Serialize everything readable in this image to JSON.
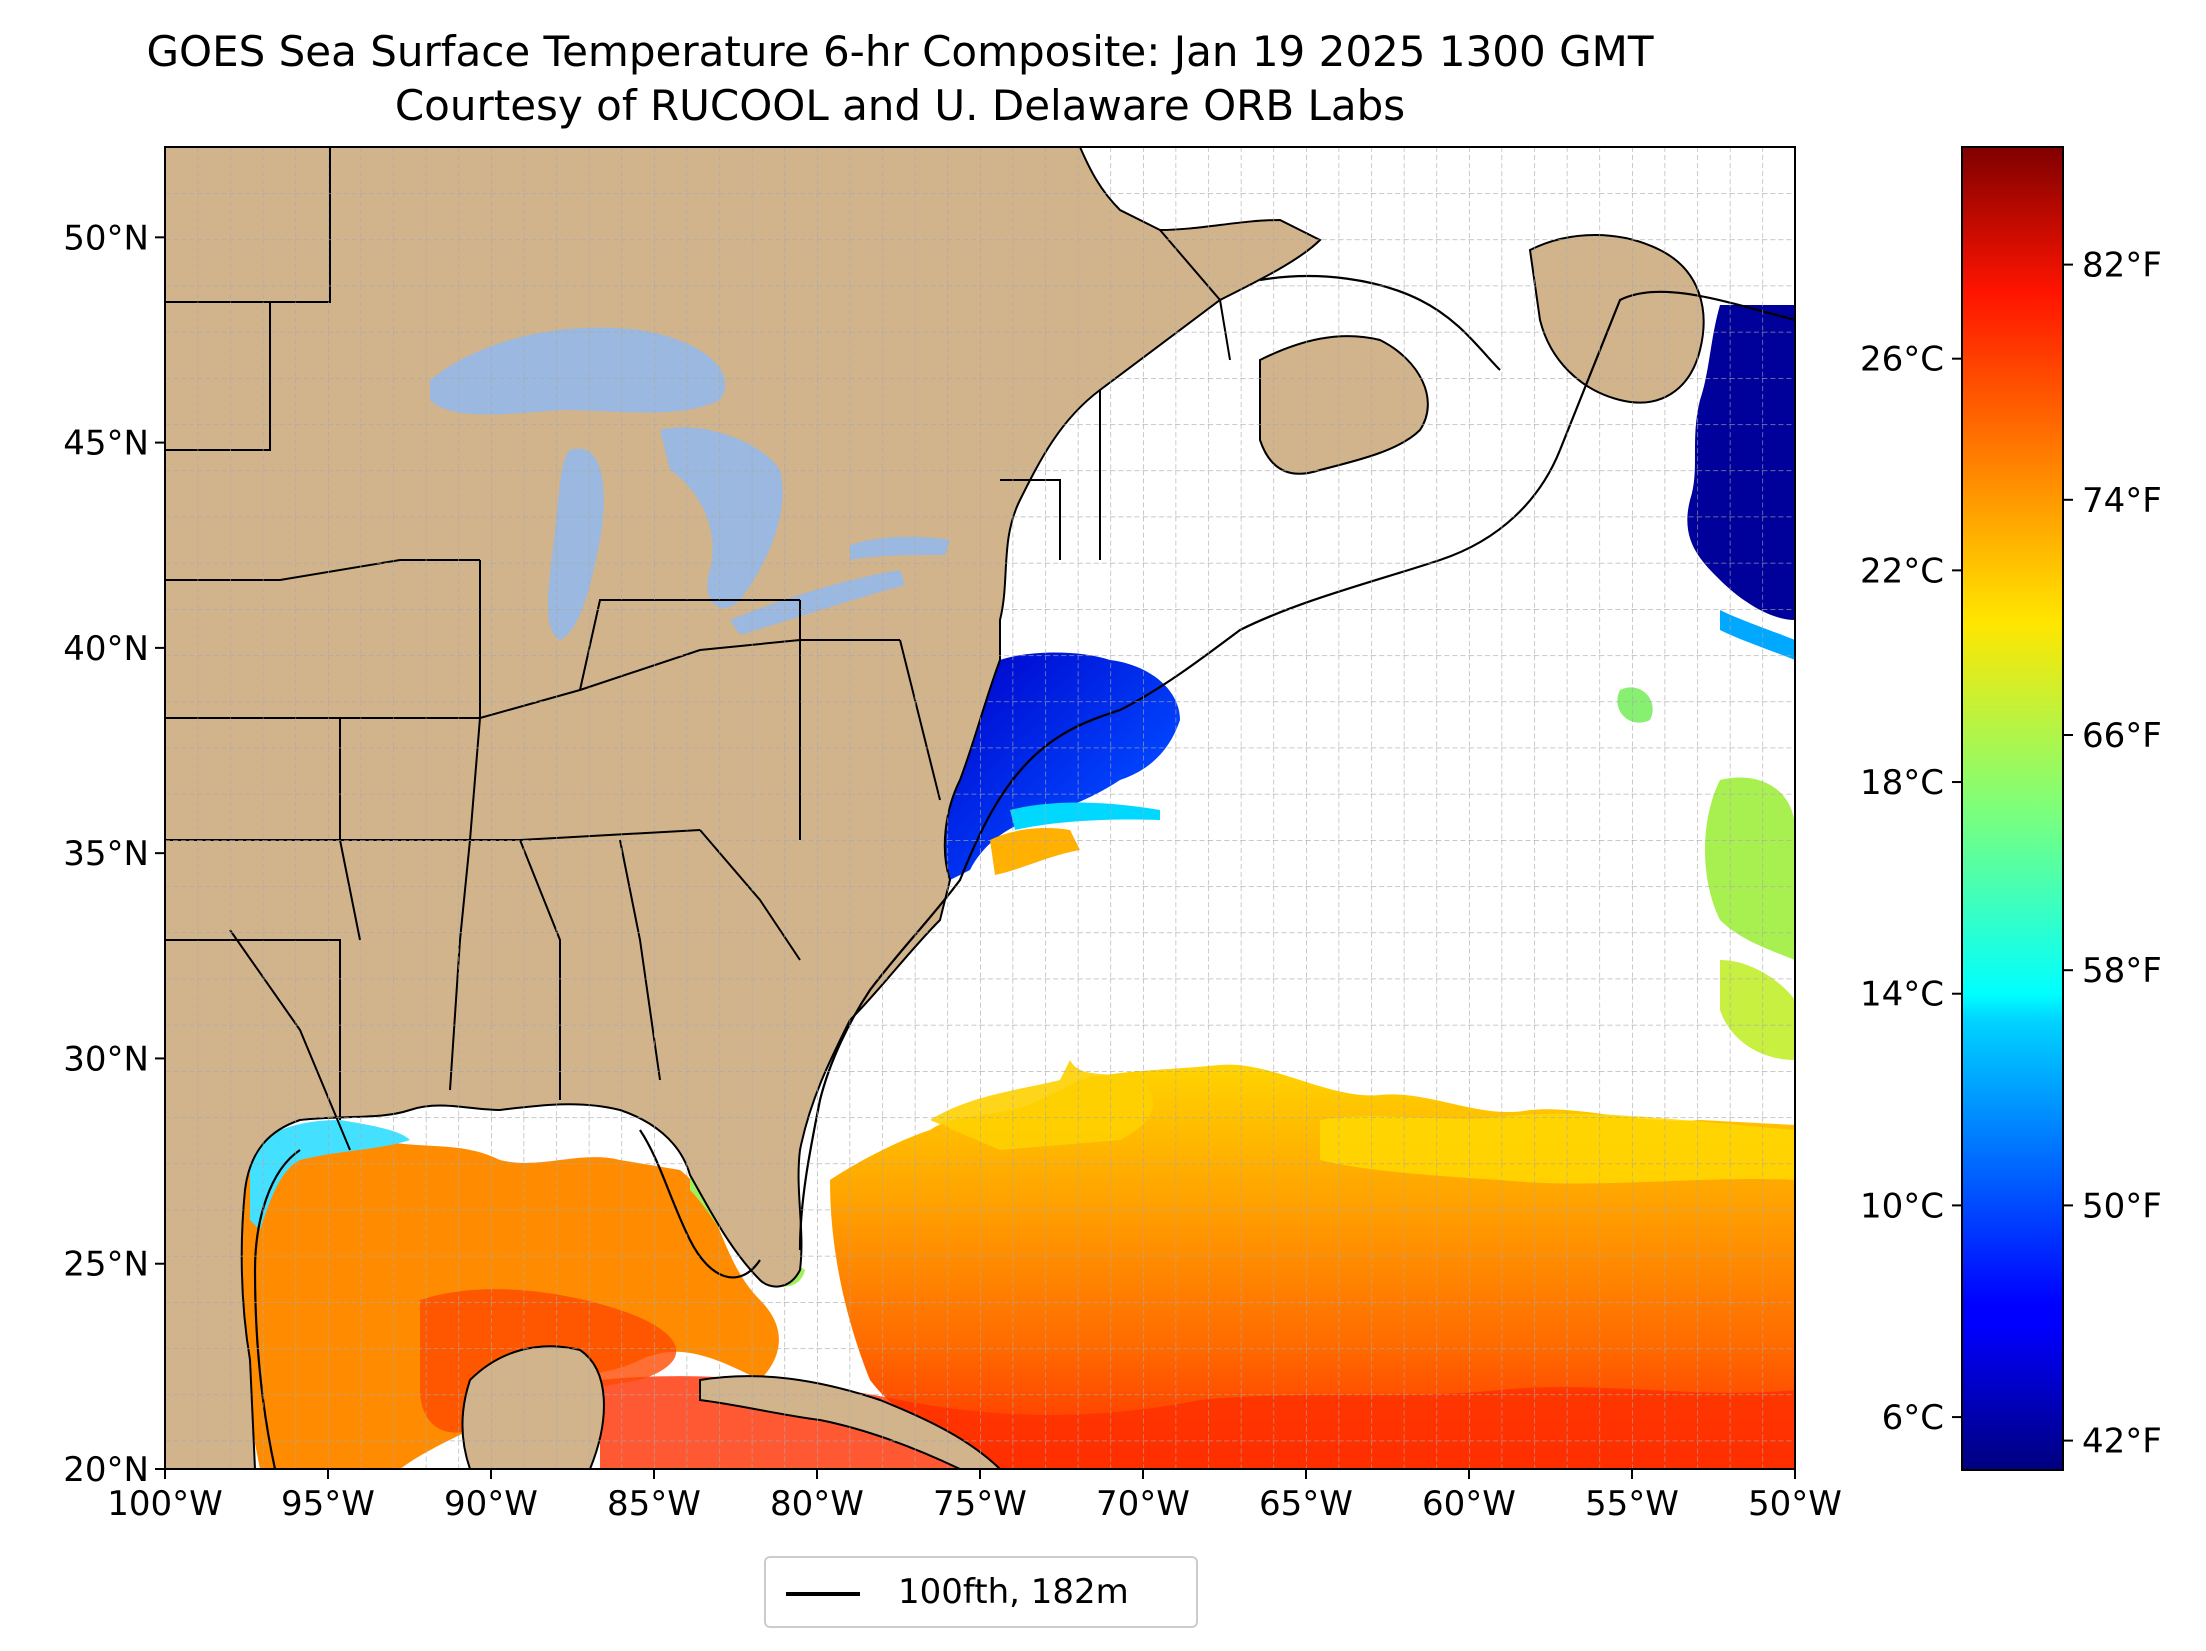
{
  "title": {
    "line1": "GOES Sea Surface Temperature 6-hr Composite: Jan 19 2025 1300 GMT",
    "line2": "Courtesy of RUCOOL and U. Delaware ORB Labs"
  },
  "map": {
    "lon_range": [
      -100,
      -50
    ],
    "lat_range": [
      20,
      52.2
    ],
    "x_ticks": [
      {
        "lon": -100,
        "label": "100°W"
      },
      {
        "lon": -95,
        "label": "95°W"
      },
      {
        "lon": -90,
        "label": "90°W"
      },
      {
        "lon": -85,
        "label": "85°W"
      },
      {
        "lon": -80,
        "label": "80°W"
      },
      {
        "lon": -75,
        "label": "75°W"
      },
      {
        "lon": -70,
        "label": "70°W"
      },
      {
        "lon": -65,
        "label": "65°W"
      },
      {
        "lon": -60,
        "label": "60°W"
      },
      {
        "lon": -55,
        "label": "55°W"
      },
      {
        "lon": -50,
        "label": "50°W"
      }
    ],
    "y_ticks": [
      {
        "lat": 20,
        "label": "20°N"
      },
      {
        "lat": 25,
        "label": "25°N"
      },
      {
        "lat": 30,
        "label": "30°N"
      },
      {
        "lat": 35,
        "label": "35°N"
      },
      {
        "lat": 40,
        "label": "40°N"
      },
      {
        "lat": 45,
        "label": "45°N"
      },
      {
        "lat": 50,
        "label": "50°N"
      }
    ],
    "grid": "on, 1° dashed",
    "colors": {
      "land": "#d2b48c",
      "lakes": "#9ab8e0",
      "ocean_no_data": "#ffffff",
      "borders": "#000000"
    }
  },
  "colorbar": {
    "colormap": "jet",
    "range_c": [
      5.0,
      30.0
    ],
    "celsius_ticks": [
      {
        "value": 6,
        "label": "6°C"
      },
      {
        "value": 10,
        "label": "10°C"
      },
      {
        "value": 14,
        "label": "14°C"
      },
      {
        "value": 18,
        "label": "18°C"
      },
      {
        "value": 22,
        "label": "22°C"
      },
      {
        "value": 26,
        "label": "26°C"
      }
    ],
    "fahrenheit_ticks": [
      {
        "value": 42,
        "label": "42°F"
      },
      {
        "value": 50,
        "label": "50°F"
      },
      {
        "value": 58,
        "label": "58°F"
      },
      {
        "value": 66,
        "label": "66°F"
      },
      {
        "value": 74,
        "label": "74°F"
      },
      {
        "value": 82,
        "label": "82°F"
      }
    ]
  },
  "legend": {
    "label": "100fth, 182m",
    "line_color": "#000000"
  }
}
